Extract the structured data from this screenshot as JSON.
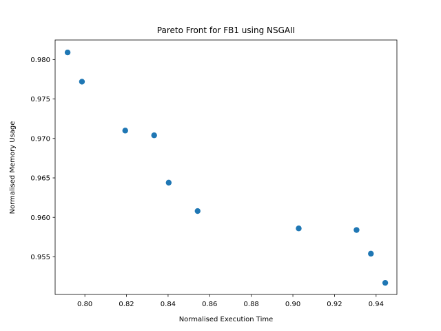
{
  "chart_data": {
    "type": "scatter",
    "title": "Pareto Front for FB1 using NSGAII",
    "xlabel": "Normalised Execution Time",
    "ylabel": "Normalised Memory Usage",
    "xlim": [
      0.7857,
      0.95
    ],
    "ylim": [
      0.95023,
      0.98248
    ],
    "xticks": [
      "0.80",
      "0.82",
      "0.84",
      "0.86",
      "0.88",
      "0.90",
      "0.92",
      "0.94"
    ],
    "yticks": [
      "0.955",
      "0.960",
      "0.965",
      "0.970",
      "0.975",
      "0.980"
    ],
    "grid": false,
    "marker_color": "#1f77b4",
    "points": [
      {
        "x": 0.7917,
        "y": 0.9809
      },
      {
        "x": 0.7986,
        "y": 0.9772
      },
      {
        "x": 0.8194,
        "y": 0.971
      },
      {
        "x": 0.8333,
        "y": 0.9704
      },
      {
        "x": 0.8403,
        "y": 0.9644
      },
      {
        "x": 0.8542,
        "y": 0.9608
      },
      {
        "x": 0.9028,
        "y": 0.9586
      },
      {
        "x": 0.9306,
        "y": 0.9584
      },
      {
        "x": 0.9375,
        "y": 0.9554
      },
      {
        "x": 0.9444,
        "y": 0.9517
      }
    ]
  }
}
